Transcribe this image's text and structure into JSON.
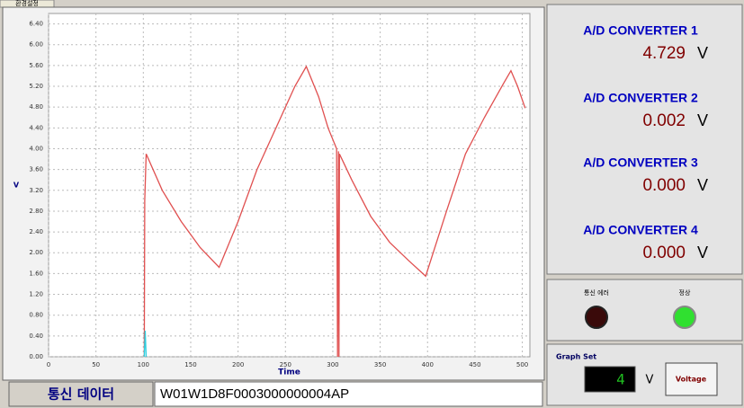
{
  "tab": "환경설정",
  "chart_data": {
    "type": "line",
    "xlabel": "Time",
    "ylabel": "V",
    "xlim": [
      0,
      508
    ],
    "ylim": [
      0,
      6.6
    ],
    "xticks": [
      0,
      50,
      100,
      150,
      200,
      250,
      300,
      350,
      400,
      450,
      500
    ],
    "yticks": [
      {
        "value": 0,
        "label": "0.00"
      },
      {
        "value": 0.4,
        "label": "0.40"
      },
      {
        "value": 0.8,
        "label": "0.80"
      },
      {
        "value": 1.2,
        "label": "1.20"
      },
      {
        "value": 1.6,
        "label": "1.60"
      },
      {
        "value": 2.0,
        "label": "2.00"
      },
      {
        "value": 2.4,
        "label": "2.40"
      },
      {
        "value": 2.8,
        "label": "2.80"
      },
      {
        "value": 3.2,
        "label": "3.20"
      },
      {
        "value": 3.6,
        "label": "3.60"
      },
      {
        "value": 4.0,
        "label": "4.00"
      },
      {
        "value": 4.4,
        "label": "4.40"
      },
      {
        "value": 4.8,
        "label": "4.80"
      },
      {
        "value": 5.2,
        "label": "5.20"
      },
      {
        "value": 5.6,
        "label": "5.60"
      },
      {
        "value": 6.0,
        "label": "6.00"
      },
      {
        "value": 6.4,
        "label": "6.40"
      }
    ],
    "grid": true,
    "series": [
      {
        "color": "#e05050",
        "x": [
          101,
          101.5,
          103,
          120,
          140,
          160,
          180,
          200,
          220,
          240,
          260,
          272,
          285,
          295,
          304,
          305,
          306,
          306.5,
          307,
          320,
          340,
          360,
          380,
          398,
          420,
          440,
          460,
          480,
          488,
          495,
          503
        ],
        "values": [
          0,
          3.0,
          3.9,
          3.2,
          2.6,
          2.1,
          1.72,
          2.6,
          3.6,
          4.4,
          5.2,
          5.58,
          5.0,
          4.4,
          4.0,
          0,
          3.95,
          0,
          3.9,
          3.4,
          2.7,
          2.2,
          1.85,
          1.55,
          2.8,
          3.9,
          4.6,
          5.25,
          5.5,
          5.2,
          4.78
        ]
      },
      {
        "color": "#30d0e0",
        "x": [
          101,
          102,
          103
        ],
        "values": [
          0,
          0.5,
          0
        ]
      }
    ]
  },
  "converters": [
    {
      "label": "A/D CONVERTER 1",
      "value": "4.729",
      "unit": "V"
    },
    {
      "label": "A/D CONVERTER 2",
      "value": "0.002",
      "unit": "V"
    },
    {
      "label": "A/D CONVERTER 3",
      "value": "0.000",
      "unit": "V"
    },
    {
      "label": "A/D CONVERTER 4",
      "value": "0.000",
      "unit": "V"
    }
  ],
  "indicators": {
    "error": "통신 에러",
    "normal": "정상"
  },
  "graph_set": {
    "title": "Graph Set",
    "display": "4",
    "unit": "V",
    "button": "Voltage"
  },
  "comm": {
    "label": "통신 데이터",
    "data": "W01W1D8F0003000000004AP"
  }
}
